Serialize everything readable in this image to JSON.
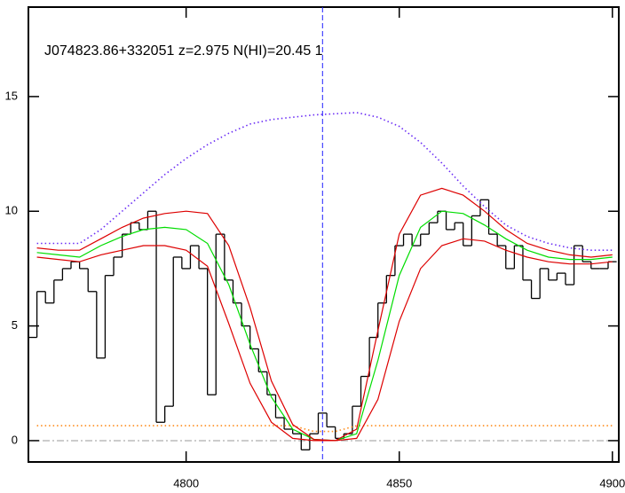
{
  "chart_data": {
    "type": "line",
    "title": "J074823.86+332051 z=2.975 N(HI)=20.45 1",
    "xlim": [
      4763,
      4901.5
    ],
    "ylim": [
      -0.93,
      18.9
    ],
    "xticks": [
      4800,
      4850,
      4900
    ],
    "yticks": [
      0,
      5,
      10,
      15
    ],
    "vline": 4832,
    "hline": 0,
    "series": [
      {
        "style": "steps",
        "color": "#000000",
        "x": [
          4764,
          4766,
          4768,
          4770,
          4772,
          4774,
          4776,
          4778,
          4780,
          4782,
          4784,
          4786,
          4788,
          4790,
          4792,
          4794,
          4796,
          4798,
          4800,
          4802,
          4804,
          4806,
          4808,
          4810,
          4812,
          4814,
          4816,
          4818,
          4820,
          4822,
          4824,
          4826,
          4828,
          4830,
          4832,
          4834,
          4836,
          4838,
          4840,
          4842,
          4844,
          4846,
          4848,
          4850,
          4852,
          4854,
          4856,
          4858,
          4860,
          4862,
          4864,
          4866,
          4868,
          4870,
          4872,
          4874,
          4876,
          4878,
          4880,
          4882,
          4884,
          4886,
          4888,
          4890,
          4892,
          4894,
          4896,
          4898,
          4900
        ],
        "values": [
          4.5,
          6.5,
          6,
          7,
          7.5,
          7.8,
          7.5,
          6.5,
          3.6,
          7.2,
          8,
          9,
          9.5,
          9.2,
          10,
          0.8,
          1.5,
          8,
          7.5,
          8.5,
          7.5,
          2,
          9,
          7,
          6,
          5,
          4,
          3,
          2,
          1,
          0.5,
          0.3,
          -0.4,
          0.3,
          1.2,
          0.6,
          0.1,
          0.3,
          1.5,
          2.8,
          4.5,
          6,
          7.2,
          8.5,
          9,
          8.5,
          9,
          9.5,
          10,
          9.2,
          9.5,
          8.5,
          9.8,
          10.5,
          9,
          8.5,
          7.5,
          8.5,
          7,
          6.2,
          7.5,
          7,
          7.3,
          6.8,
          8.5,
          7.8,
          7.5,
          7.5,
          7.8
        ]
      },
      {
        "style": "dotted",
        "color": "#6a2cf5",
        "x": [
          4765,
          4770,
          4775,
          4780,
          4785,
          4790,
          4795,
          4800,
          4805,
          4810,
          4815,
          4820,
          4825,
          4830,
          4835,
          4840,
          4845,
          4850,
          4855,
          4860,
          4865,
          4870,
          4875,
          4880,
          4885,
          4890,
          4895,
          4900
        ],
        "values": [
          8.6,
          8.6,
          8.6,
          9.2,
          10.0,
          10.8,
          11.6,
          12.3,
          12.9,
          13.4,
          13.8,
          14.0,
          14.1,
          14.2,
          14.25,
          14.3,
          14.1,
          13.7,
          13.0,
          12.1,
          11.1,
          10.2,
          9.4,
          8.9,
          8.6,
          8.4,
          8.3,
          8.3
        ]
      },
      {
        "style": "dotted",
        "color": "#ff8c1a",
        "x": [
          4765,
          4770,
          4775,
          4780,
          4785,
          4790,
          4795,
          4800,
          4805,
          4810,
          4815,
          4820,
          4825,
          4830,
          4835,
          4840,
          4845,
          4850,
          4855,
          4860,
          4865,
          4870,
          4875,
          4880,
          4885,
          4890,
          4895,
          4900
        ],
        "values": [
          0.65,
          0.65,
          0.65,
          0.65,
          0.65,
          0.65,
          0.65,
          0.65,
          0.65,
          0.65,
          0.65,
          0.65,
          0.65,
          0.4,
          0.4,
          0.65,
          0.65,
          0.65,
          0.65,
          0.65,
          0.65,
          0.65,
          0.65,
          0.65,
          0.65,
          0.65,
          0.65,
          0.65
        ]
      },
      {
        "style": "solid",
        "color": "#00dd00",
        "x": [
          4765,
          4770,
          4775,
          4780,
          4785,
          4790,
          4795,
          4800,
          4805,
          4810,
          4815,
          4820,
          4825,
          4830,
          4835,
          4840,
          4845,
          4850,
          4855,
          4860,
          4865,
          4870,
          4875,
          4880,
          4885,
          4890,
          4895,
          4900
        ],
        "values": [
          8.2,
          8.1,
          8.0,
          8.5,
          8.9,
          9.2,
          9.3,
          9.2,
          8.6,
          6.8,
          4.2,
          1.9,
          0.5,
          0.05,
          0.0,
          0.3,
          3.5,
          7.2,
          9.3,
          10.0,
          9.9,
          9.4,
          8.8,
          8.3,
          8.0,
          7.9,
          7.9,
          8.0
        ]
      },
      {
        "style": "solid",
        "color": "#dd0000",
        "x": [
          4765,
          4770,
          4775,
          4780,
          4785,
          4790,
          4795,
          4800,
          4805,
          4810,
          4815,
          4820,
          4825,
          4830,
          4835,
          4840,
          4845,
          4850,
          4855,
          4860,
          4865,
          4870,
          4875,
          4880,
          4885,
          4890,
          4895,
          4900
        ],
        "values": [
          8.4,
          8.3,
          8.3,
          8.8,
          9.3,
          9.7,
          9.9,
          10.0,
          9.9,
          8.5,
          5.8,
          2.6,
          0.7,
          0.05,
          0.0,
          0.5,
          4.8,
          9.0,
          10.7,
          11.0,
          10.7,
          10.0,
          9.2,
          8.6,
          8.3,
          8.1,
          8.0,
          8.1
        ]
      },
      {
        "style": "solid",
        "color": "#dd0000",
        "x": [
          4765,
          4770,
          4775,
          4780,
          4785,
          4790,
          4795,
          4800,
          4805,
          4810,
          4815,
          4820,
          4825,
          4830,
          4835,
          4840,
          4845,
          4850,
          4855,
          4860,
          4865,
          4870,
          4875,
          4880,
          4885,
          4890,
          4895,
          4900
        ],
        "values": [
          8.0,
          7.9,
          7.8,
          8.1,
          8.3,
          8.5,
          8.5,
          8.3,
          7.6,
          5.1,
          2.5,
          0.8,
          0.1,
          0.0,
          0.0,
          0.1,
          1.8,
          5.2,
          7.5,
          8.5,
          8.8,
          8.7,
          8.3,
          8.0,
          7.8,
          7.7,
          7.7,
          7.8
        ]
      }
    ]
  }
}
